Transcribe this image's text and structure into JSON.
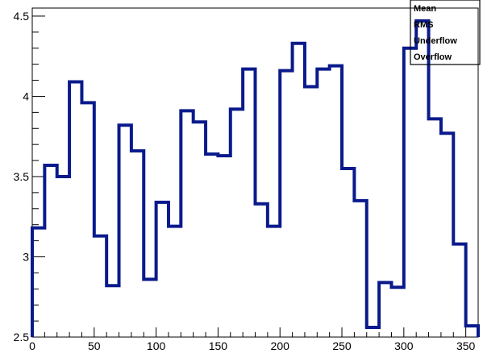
{
  "chart_data": {
    "type": "line",
    "subtype": "step-histogram",
    "title": "",
    "xlabel": "",
    "ylabel": "",
    "xlim": [
      0,
      360
    ],
    "ylim": [
      2.5,
      4.55
    ],
    "x_ticks": [
      0,
      50,
      100,
      150,
      200,
      250,
      300,
      350
    ],
    "x_tick_labels": [
      "0",
      "50",
      "100",
      "150",
      "200",
      "250",
      "300",
      "350"
    ],
    "y_ticks": [
      2.5,
      3,
      3.5,
      4,
      4.5
    ],
    "y_tick_labels": [
      "2.5",
      "3",
      "3.5",
      "4",
      "4.5"
    ],
    "bin_width": 10,
    "series": [
      {
        "line_color": "#0a1a8c",
        "x": [
          0,
          10,
          20,
          30,
          40,
          50,
          60,
          70,
          80,
          90,
          100,
          110,
          120,
          130,
          140,
          150,
          160,
          170,
          180,
          190,
          200,
          210,
          220,
          230,
          240,
          250,
          260,
          270,
          280,
          290,
          300,
          310,
          320,
          330,
          340,
          350
        ],
        "values": [
          3.18,
          3.57,
          3.5,
          4.09,
          3.96,
          3.13,
          2.82,
          3.82,
          3.66,
          2.86,
          3.34,
          3.19,
          3.91,
          3.84,
          3.64,
          3.63,
          3.92,
          4.17,
          3.33,
          3.19,
          4.16,
          4.33,
          4.06,
          4.17,
          4.19,
          3.55,
          3.35,
          2.56,
          2.84,
          2.81,
          4.3,
          4.47,
          3.86,
          3.77,
          3.08,
          2.57
        ]
      }
    ],
    "stats_box": {
      "labels": [
        "Mean",
        "RMS",
        "Underflow",
        "Overflow"
      ]
    },
    "grid": false
  }
}
